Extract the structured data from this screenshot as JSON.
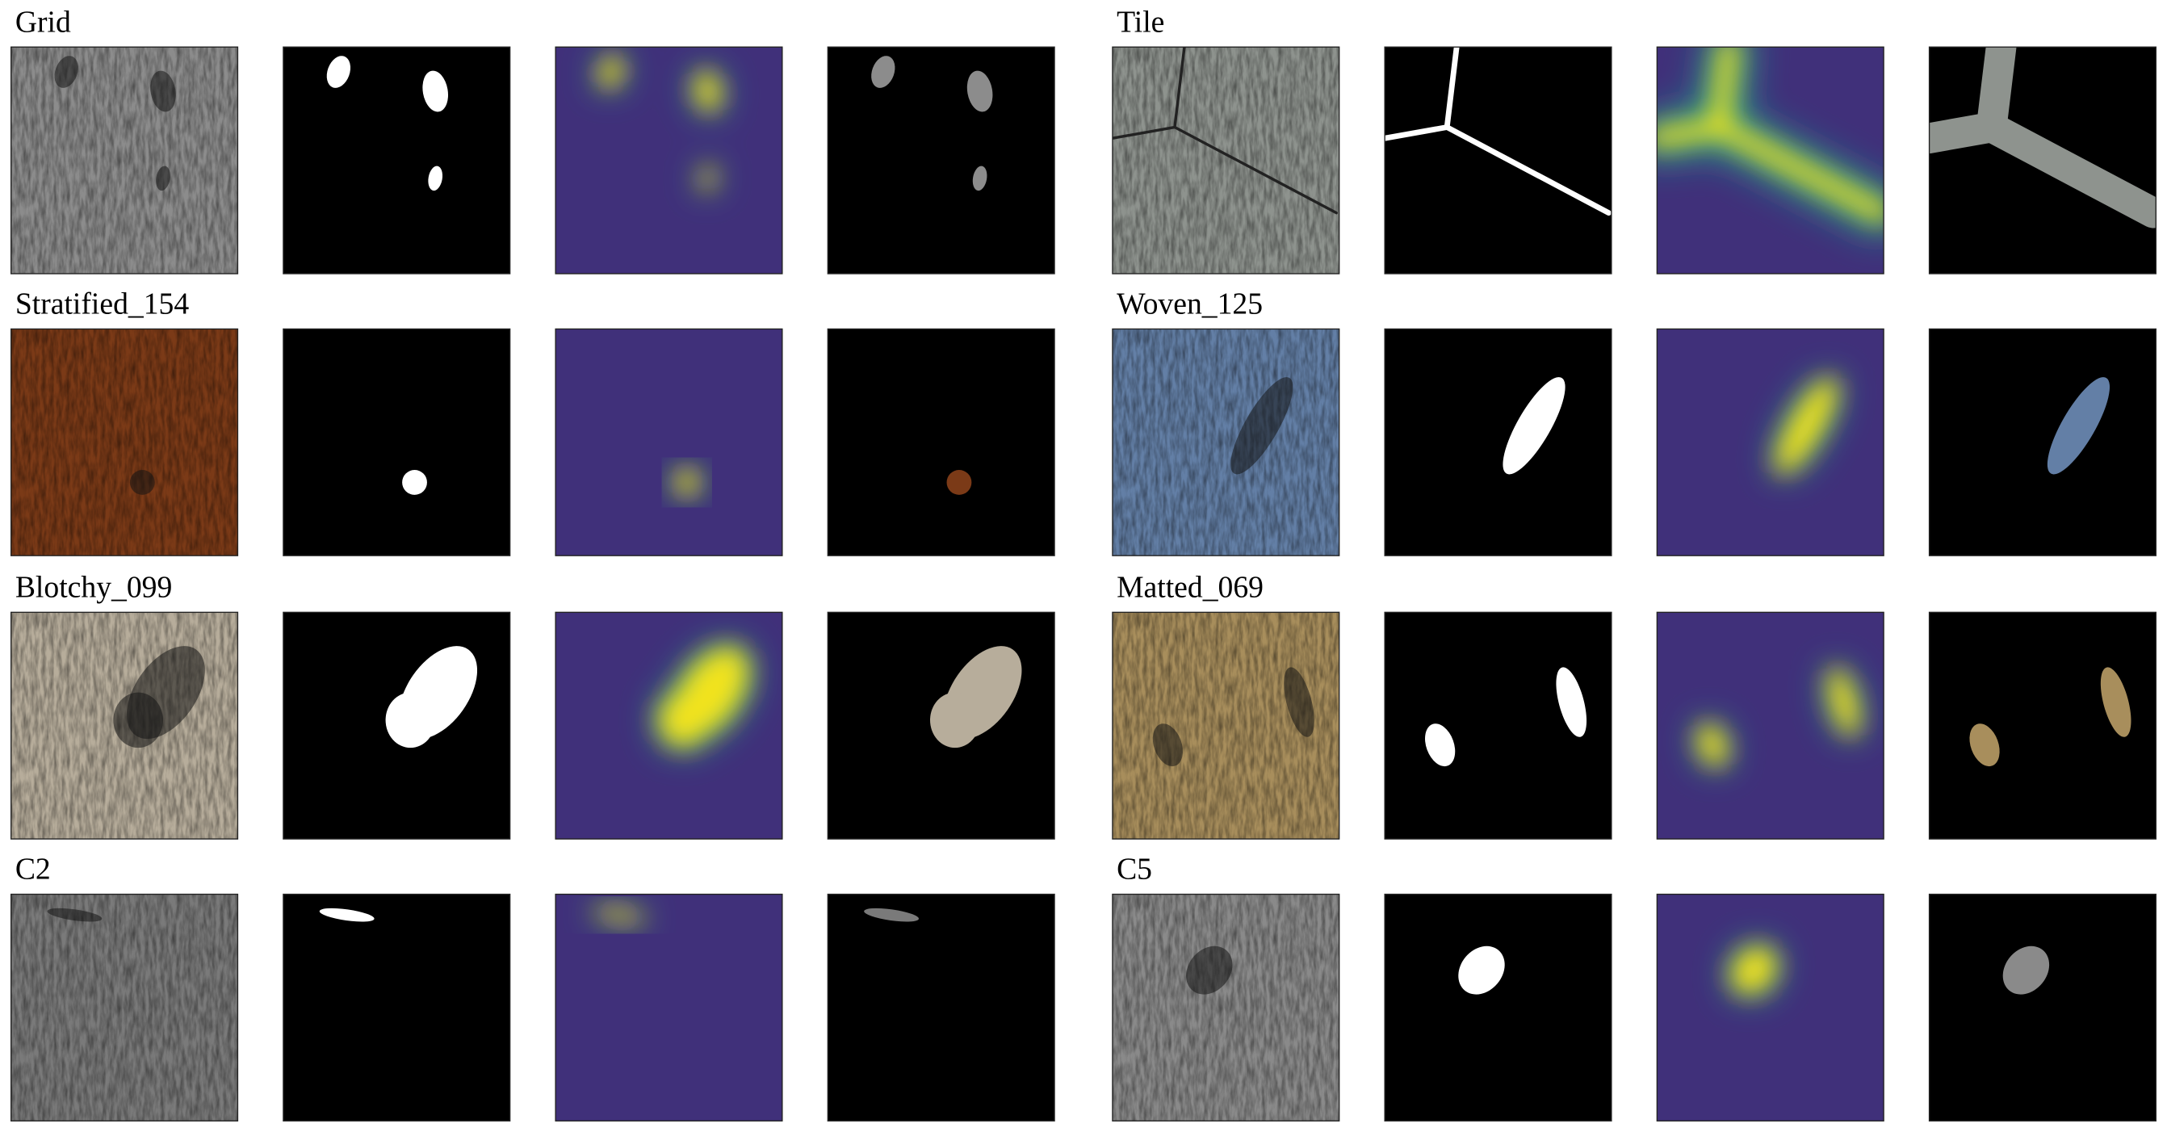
{
  "samples": [
    {
      "label": "Grid"
    },
    {
      "label": "Tile"
    },
    {
      "label": "Stratified_154"
    },
    {
      "label": "Woven_125"
    },
    {
      "label": "Blotchy_099"
    },
    {
      "label": "Matted_069"
    },
    {
      "label": "C2"
    },
    {
      "label": "C5"
    }
  ]
}
